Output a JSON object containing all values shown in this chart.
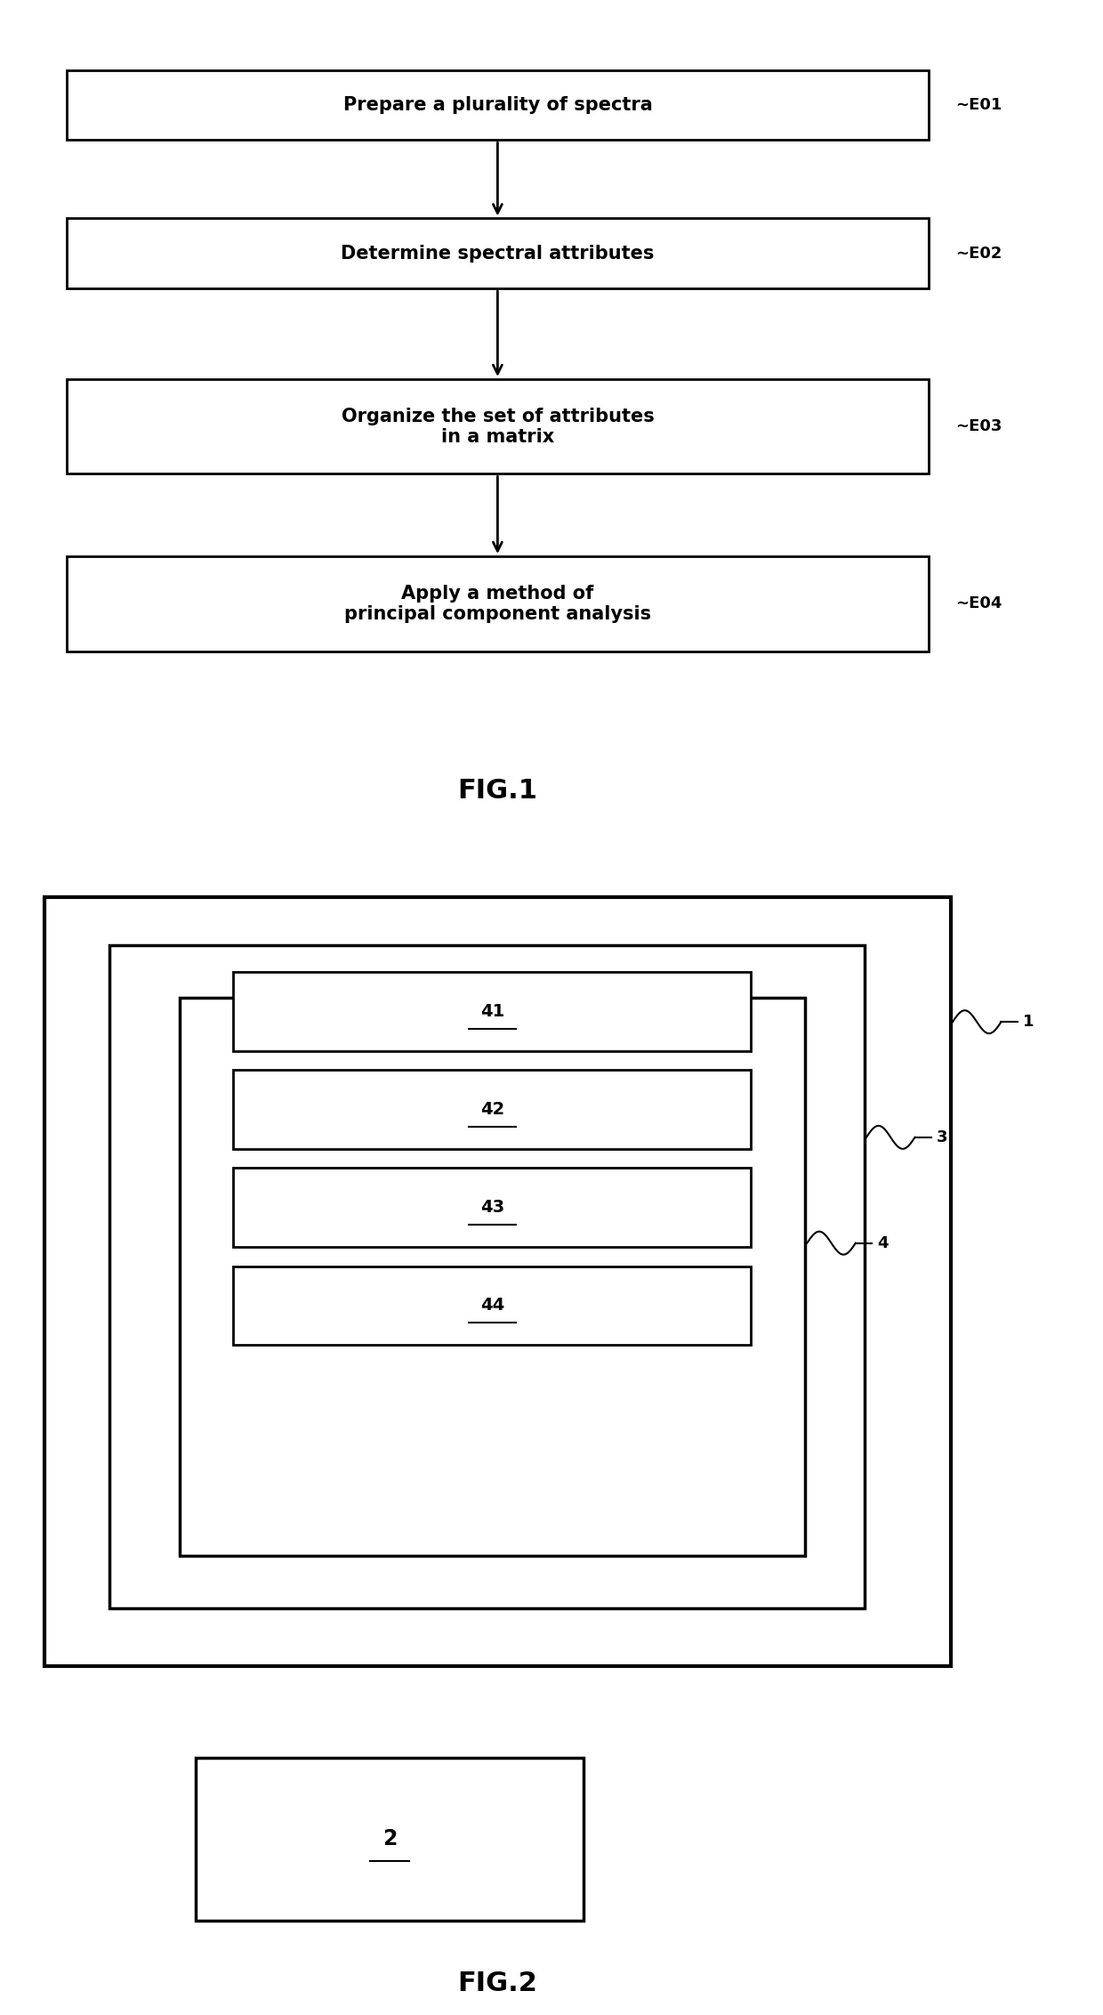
{
  "fig1_title": "FIG.1",
  "fig2_title": "FIG.2",
  "flowchart_boxes": [
    {
      "label": "Prepare a plurality of spectra",
      "tag": "E01"
    },
    {
      "label": "Determine spectral attributes",
      "tag": "E02"
    },
    {
      "label": "Organize the set of attributes\nin a matrix",
      "tag": "E03"
    },
    {
      "label": "Apply a method of\nprincipal component analysis",
      "tag": "E04"
    }
  ],
  "fig2_labels": [
    "41",
    "42",
    "43",
    "44"
  ],
  "fig2_box2_label": "2",
  "bg_color": "#ffffff",
  "box_color": "#ffffff",
  "box_edge_color": "#000000",
  "text_color": "#000000",
  "arrow_color": "#000000",
  "font_size_flow": 15,
  "font_size_tag": 13,
  "font_size_fig_title": 22,
  "font_size_inner_label": 14
}
